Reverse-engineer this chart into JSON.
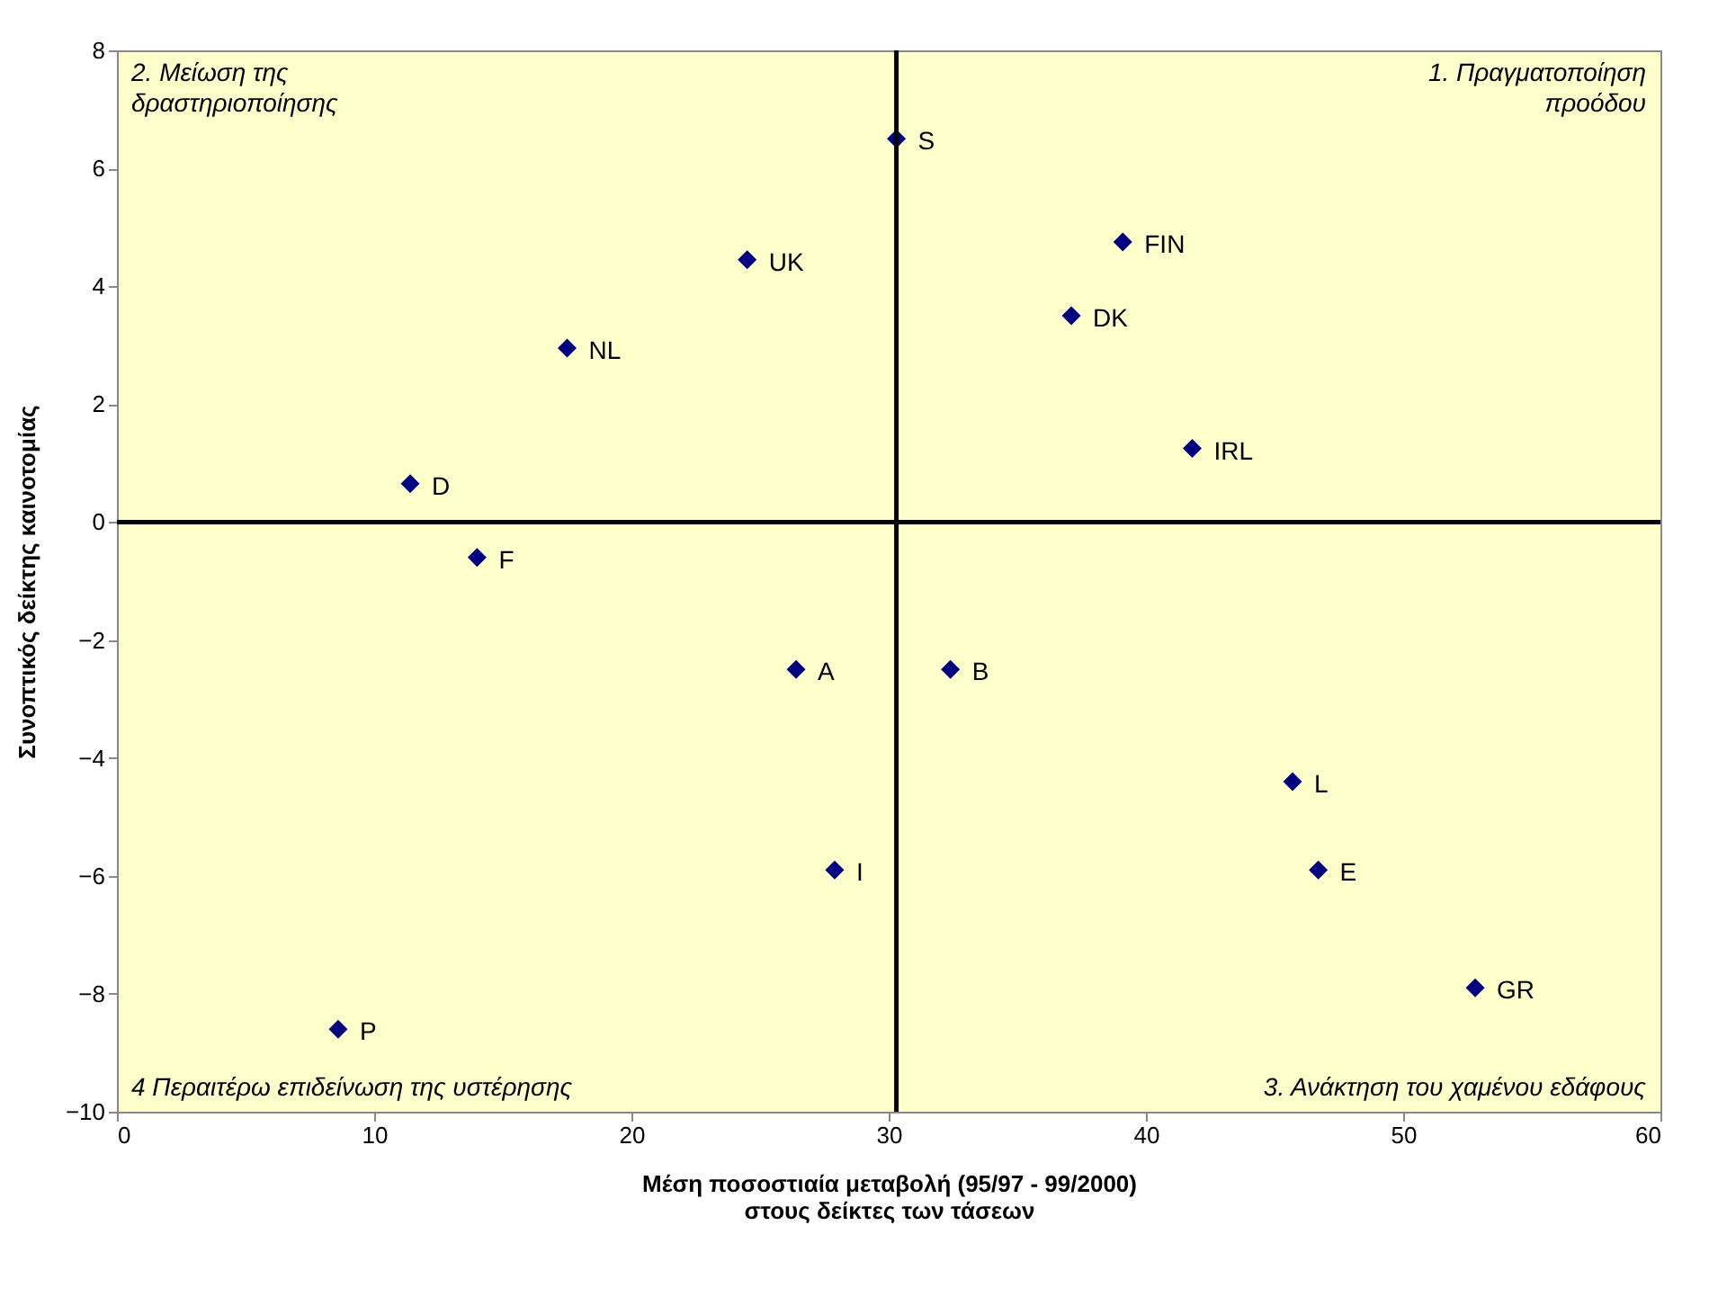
{
  "chart_data": {
    "type": "scatter",
    "xlabel": "Μέση ποσοστιαία μεταβολή (95/97 - 99/2000)\nστους δείκτες των τάσεων",
    "ylabel": "Συνοπτικός δείκτης καινοτομίας",
    "x": [
      30.3,
      24.5,
      17.5,
      11.4,
      14.0,
      39.1,
      37.1,
      41.8,
      26.4,
      32.4,
      45.7,
      46.7,
      27.9,
      52.8,
      8.6
    ],
    "series": [
      {
        "color": "#000080",
        "values": [
          6.5,
          4.45,
          2.95,
          0.65,
          -0.6,
          4.75,
          3.5,
          1.25,
          -2.5,
          -2.5,
          -4.4,
          -5.9,
          -5.9,
          -7.9,
          -8.6
        ]
      }
    ],
    "marker": "diamond",
    "grid": false,
    "xlim": [
      0,
      60
    ],
    "xticks": [
      0,
      10,
      20,
      30,
      40,
      50,
      60
    ],
    "ylim": [
      -10,
      8
    ],
    "yticks": [
      -10,
      -8,
      -6,
      -4,
      -2,
      0,
      2,
      4,
      6,
      8
    ],
    "ref_lines": [
      {
        "axis": "x",
        "value": 30.3,
        "color": "#000000"
      },
      {
        "axis": "y",
        "value": 0,
        "color": "#000000"
      }
    ],
    "annotations": [
      "2. Μείωση της\nδραστηριοποίησης",
      "1. Πραγματοποίηση\nπροόδου",
      "4 Περαιτέρω επιδείνωση της υστέρησης",
      "3. Ανάκτηση του χαμένου εδάφους",
      {
        "text": "S",
        "x": 30.3,
        "y": 6.5
      },
      {
        "text": "UK",
        "x": 24.5,
        "y": 4.45
      },
      {
        "text": "NL",
        "x": 17.5,
        "y": 2.95
      },
      {
        "text": "D",
        "x": 11.4,
        "y": 0.65
      },
      {
        "text": "F",
        "x": 14.0,
        "y": -0.6
      },
      {
        "text": "FIN",
        "x": 39.1,
        "y": 4.75
      },
      {
        "text": "DK",
        "x": 37.1,
        "y": 3.5
      },
      {
        "text": "IRL",
        "x": 41.8,
        "y": 1.25
      },
      {
        "text": "A",
        "x": 26.4,
        "y": -2.5
      },
      {
        "text": "B",
        "x": 32.4,
        "y": -2.5
      },
      {
        "text": "L",
        "x": 45.7,
        "y": -4.4
      },
      {
        "text": "E",
        "x": 46.7,
        "y": -5.9
      },
      {
        "text": "I",
        "x": 27.9,
        "y": -5.9
      },
      {
        "text": "GR",
        "x": 52.8,
        "y": -7.9
      },
      {
        "text": "P",
        "x": 8.6,
        "y": -8.6
      }
    ]
  }
}
